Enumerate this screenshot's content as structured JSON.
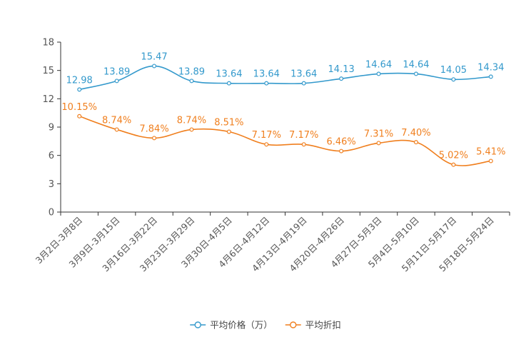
{
  "chart_data": {
    "type": "line",
    "title": "",
    "xlabel": "",
    "ylabel": "",
    "ylim": [
      0,
      18
    ],
    "yticks": [
      0,
      3,
      6,
      9,
      12,
      15,
      18
    ],
    "grid": false,
    "legend_position": "bottom-center",
    "categories": [
      "3月2日-3月8日",
      "3月9日-3月15日",
      "3月16日-3月22日",
      "3月23日-3月29日",
      "3月30日-4月5日",
      "4月6日-4月12日",
      "4月13日-4月19日",
      "4月20日-4月26日",
      "4月27日-5月3日",
      "5月4日-5月10日",
      "5月11日-5月17日",
      "5月18日-5月24日"
    ],
    "series": [
      {
        "name": "平均价格（万）",
        "color": "#3399cc",
        "values": [
          12.98,
          13.89,
          15.47,
          13.89,
          13.64,
          13.64,
          13.64,
          14.13,
          14.64,
          14.64,
          14.05,
          14.34
        ],
        "labels": [
          "12.98",
          "13.89",
          "15.47",
          "13.89",
          "13.64",
          "13.64",
          "13.64",
          "14.13",
          "14.64",
          "14.64",
          "14.05",
          "14.34"
        ]
      },
      {
        "name": "平均折扣",
        "color": "#f07f1e",
        "values": [
          10.15,
          8.74,
          7.84,
          8.74,
          8.51,
          7.17,
          7.17,
          6.46,
          7.31,
          7.4,
          5.02,
          5.41
        ],
        "labels": [
          "10.15%",
          "8.74%",
          "7.84%",
          "8.74%",
          "8.51%",
          "7.17%",
          "7.17%",
          "6.46%",
          "7.31%",
          "7.40%",
          "5.02%",
          "5.41%"
        ]
      }
    ]
  }
}
